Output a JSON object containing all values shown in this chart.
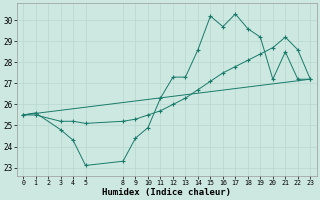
{
  "xlabel": "Humidex (Indice chaleur)",
  "ylabel": "",
  "background_color": "#cce8e0",
  "grid_color": "#b8d8d0",
  "line_color": "#1a7a6a",
  "x_ticks": [
    0,
    1,
    2,
    3,
    4,
    5,
    8,
    9,
    10,
    11,
    12,
    13,
    14,
    15,
    16,
    17,
    18,
    19,
    20,
    21,
    22,
    23
  ],
  "y_ticks": [
    23,
    24,
    25,
    26,
    27,
    28,
    29,
    30
  ],
  "ylim": [
    22.6,
    30.8
  ],
  "xlim": [
    -0.5,
    23.5
  ],
  "s1x": [
    0,
    1,
    3,
    4,
    5,
    8,
    9,
    10,
    11,
    12,
    13,
    14,
    15,
    16,
    17,
    18,
    19,
    20,
    21,
    22,
    23
  ],
  "s1y": [
    25.5,
    25.6,
    24.8,
    24.3,
    23.1,
    23.3,
    24.4,
    24.9,
    26.3,
    27.3,
    27.3,
    28.6,
    30.2,
    29.7,
    30.3,
    29.6,
    29.2,
    27.2,
    28.5,
    27.2,
    27.2
  ],
  "s2x": [
    0,
    1,
    3,
    4,
    5,
    8,
    9,
    10,
    11,
    12,
    13,
    14,
    15,
    16,
    17,
    18,
    19,
    20,
    21,
    22,
    23
  ],
  "s2y": [
    25.5,
    25.5,
    25.2,
    25.2,
    25.1,
    25.2,
    25.3,
    25.5,
    25.7,
    26.0,
    26.3,
    26.7,
    27.1,
    27.5,
    27.8,
    28.1,
    28.4,
    28.7,
    29.2,
    28.6,
    27.2
  ],
  "s3x": [
    0,
    23
  ],
  "s3y": [
    25.5,
    27.2
  ]
}
